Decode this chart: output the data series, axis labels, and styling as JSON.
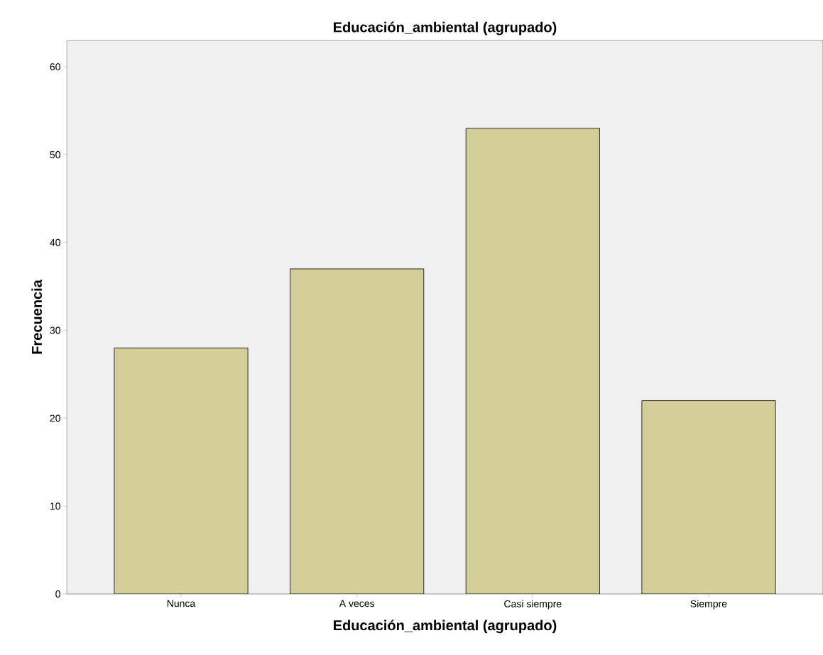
{
  "chart_data": {
    "type": "bar",
    "title": "Educación_ambiental (agrupado)",
    "xlabel": "Educación_ambiental (agrupado)",
    "ylabel": "Frecuencia",
    "categories": [
      "Nunca",
      "A veces",
      "Casi siempre",
      "Siempre"
    ],
    "values": [
      28,
      37,
      53,
      22
    ],
    "color": "#d3ce97",
    "ylim": [
      0,
      63
    ],
    "yticks": [
      0,
      10,
      20,
      30,
      40,
      50,
      60
    ]
  }
}
